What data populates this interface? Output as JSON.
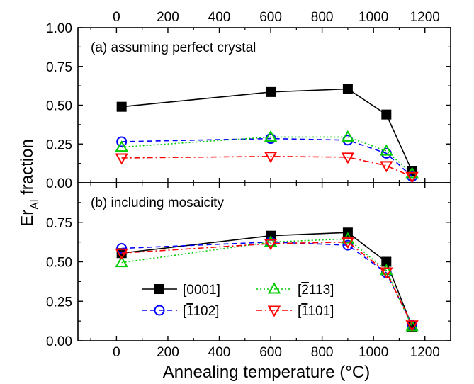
{
  "chart_data": {
    "type": "line",
    "xlabel": "Annealing temperature (°C)",
    "ylabel_main": "Er",
    "ylabel_sub": "Al",
    "ylabel_rest": " fraction",
    "xlim": [
      -150,
      1300
    ],
    "x_ticks": [
      0,
      200,
      400,
      600,
      800,
      1000,
      1200
    ],
    "x_tick_labels": [
      "0",
      "200",
      "400",
      "600",
      "800",
      "1000",
      "1200"
    ],
    "x": [
      20,
      600,
      900,
      1050,
      1150
    ],
    "legend_placement": "lower-left of panel (b)",
    "panels": [
      {
        "annotation": "(a) assuming perfect crystal",
        "ylim": [
          0,
          1
        ],
        "y_ticks": [
          0,
          0.25,
          0.5,
          0.75,
          1.0
        ],
        "y_tick_labels": [
          "0.00",
          "0.25",
          "0.50",
          "0.75",
          "1.00"
        ],
        "series": [
          {
            "name": "[0001]",
            "values": [
              0.49,
              0.585,
              0.605,
              0.44,
              0.075
            ]
          },
          {
            "name": "[1102]",
            "values": [
              0.265,
              0.285,
              0.275,
              0.19,
              0.04
            ]
          },
          {
            "name": "[2113]",
            "values": [
              0.23,
              0.295,
              0.295,
              0.205,
              0.06
            ]
          },
          {
            "name": "[1101]",
            "values": [
              0.16,
              0.17,
              0.165,
              0.11,
              0.04
            ]
          }
        ]
      },
      {
        "annotation": "(b) including mosaicity",
        "ylim": [
          0,
          1
        ],
        "y_ticks": [
          0,
          0.25,
          0.5,
          0.75
        ],
        "y_tick_labels": [
          "0.00",
          "0.25",
          "0.50",
          "0.75"
        ],
        "series": [
          {
            "name": "[0001]",
            "values": [
              0.555,
              0.665,
              0.685,
              0.5,
              0.09
            ]
          },
          {
            "name": "[1102]",
            "values": [
              0.585,
              0.625,
              0.605,
              0.43,
              0.1
            ]
          },
          {
            "name": "[2113]",
            "values": [
              0.495,
              0.625,
              0.645,
              0.445,
              0.09
            ]
          },
          {
            "name": "[1101]",
            "values": [
              0.555,
              0.615,
              0.625,
              0.435,
              0.1
            ]
          }
        ]
      }
    ],
    "series_styles": [
      {
        "color": "#000000",
        "marker": "square-filled",
        "dash": "solid"
      },
      {
        "color": "#0000ff",
        "marker": "circle-open",
        "dash": "dash"
      },
      {
        "color": "#00cc00",
        "marker": "triangle-up-open",
        "dash": "dot"
      },
      {
        "color": "#ff0000",
        "marker": "triangle-down-open",
        "dash": "dashdot"
      }
    ],
    "legend": [
      {
        "prefix": "[",
        "overbar": "",
        "plain": "0001",
        "suffix": "]"
      },
      {
        "prefix": "[",
        "overbar": "1",
        "plain": "102",
        "suffix": "]"
      },
      {
        "prefix": "[",
        "overbar": "2",
        "plain": "113",
        "suffix": "]"
      },
      {
        "prefix": "[",
        "overbar": "1",
        "plain": "101",
        "suffix": "]"
      }
    ]
  }
}
